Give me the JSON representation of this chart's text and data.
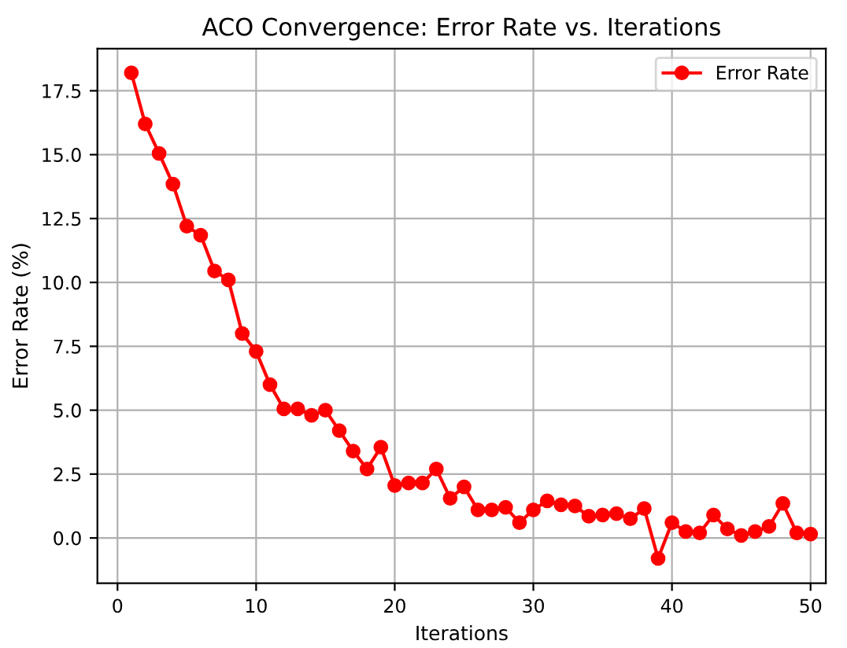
{
  "chart_data": {
    "type": "line",
    "title": "ACO Convergence: Error Rate vs. Iterations",
    "xlabel": "Iterations",
    "ylabel": "Error Rate (%)",
    "x": [
      1,
      2,
      3,
      4,
      5,
      6,
      7,
      8,
      9,
      10,
      11,
      12,
      13,
      14,
      15,
      16,
      17,
      18,
      19,
      20,
      21,
      22,
      23,
      24,
      25,
      26,
      27,
      28,
      29,
      30,
      31,
      32,
      33,
      34,
      35,
      36,
      37,
      38,
      39,
      40,
      41,
      42,
      43,
      44,
      45,
      46,
      47,
      48,
      49,
      50
    ],
    "series": [
      {
        "name": "Error Rate",
        "color": "#ff0000",
        "values": [
          18.2,
          16.2,
          15.05,
          13.85,
          12.2,
          11.85,
          10.45,
          10.1,
          8.0,
          7.3,
          6.0,
          5.05,
          5.05,
          4.8,
          5.0,
          4.2,
          3.4,
          2.7,
          3.55,
          2.05,
          2.15,
          2.15,
          2.7,
          1.55,
          2.0,
          1.1,
          1.1,
          1.2,
          0.6,
          1.1,
          1.45,
          1.3,
          1.25,
          0.85,
          0.9,
          0.95,
          0.75,
          1.15,
          -0.8,
          0.6,
          0.25,
          0.2,
          0.9,
          0.35,
          0.1,
          0.25,
          0.45,
          1.35,
          0.2,
          0.15
        ]
      }
    ],
    "xlim": [
      -1.45,
      51.1
    ],
    "ylim": [
      -1.77,
      19.15
    ],
    "xticks": [
      0,
      10,
      20,
      30,
      40,
      50
    ],
    "yticks": [
      {
        "value": 0,
        "label": "0.0"
      },
      {
        "value": 2.5,
        "label": "2.5"
      },
      {
        "value": 5,
        "label": "5.0"
      },
      {
        "value": 7.5,
        "label": "7.5"
      },
      {
        "value": 10,
        "label": "10.0"
      },
      {
        "value": 12.5,
        "label": "12.5"
      },
      {
        "value": 15,
        "label": "15.0"
      },
      {
        "value": 17.5,
        "label": "17.5"
      }
    ],
    "grid": true,
    "legend": "top right",
    "marker": "circle",
    "line_style": "solid"
  }
}
